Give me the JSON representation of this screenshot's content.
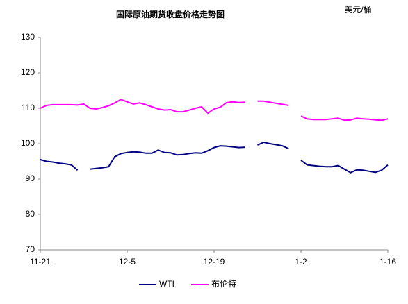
{
  "chart_data": {
    "type": "line",
    "title": "国际原油期货收盘价格走势图",
    "unit": "美元/桶",
    "categories": [
      "11-21",
      null,
      null,
      null,
      null,
      null,
      null,
      null,
      null,
      null,
      null,
      null,
      null,
      null,
      "12-5",
      null,
      null,
      null,
      null,
      null,
      null,
      null,
      null,
      null,
      null,
      null,
      null,
      null,
      "12-19",
      null,
      null,
      null,
      null,
      null,
      null,
      null,
      null,
      null,
      null,
      null,
      null,
      null,
      "1-2",
      null,
      null,
      null,
      null,
      null,
      null,
      null,
      null,
      null,
      null,
      null,
      null,
      null,
      "1-16"
    ],
    "series": [
      {
        "name": "WTI",
        "color": "#000080",
        "values": [
          95.5,
          95.0,
          94.8,
          94.5,
          94.3,
          94.0,
          92.5,
          null,
          92.8,
          93.0,
          93.2,
          93.5,
          96.3,
          97.2,
          97.5,
          97.7,
          97.6,
          97.3,
          97.3,
          98.2,
          97.5,
          97.4,
          96.8,
          96.9,
          97.2,
          97.4,
          97.3,
          98.0,
          98.9,
          99.4,
          99.3,
          99.1,
          98.9,
          99.0,
          null,
          99.6,
          100.4,
          100.0,
          99.7,
          99.4,
          98.6,
          null,
          95.3,
          94.0,
          93.8,
          93.6,
          93.5,
          93.5,
          93.8,
          92.8,
          91.8,
          92.6,
          92.5,
          92.2,
          91.9,
          92.5,
          94.0
        ]
      },
      {
        "name": "布伦特",
        "color": "#ff00ff",
        "values": [
          110.0,
          110.8,
          111.0,
          111.0,
          111.0,
          111.0,
          110.9,
          111.2,
          110.0,
          109.8,
          110.2,
          110.7,
          111.5,
          112.5,
          111.8,
          111.2,
          111.5,
          111.0,
          110.4,
          109.8,
          109.5,
          109.6,
          109.0,
          109.0,
          109.5,
          110.0,
          110.4,
          108.6,
          109.8,
          110.3,
          111.6,
          111.8,
          111.6,
          111.7,
          null,
          112.0,
          112.0,
          111.7,
          111.4,
          111.1,
          110.8,
          null,
          107.8,
          107.0,
          106.8,
          106.8,
          106.8,
          107.0,
          107.2,
          106.6,
          106.7,
          107.2,
          107.0,
          106.9,
          106.7,
          106.6,
          107.0
        ]
      }
    ],
    "ylim": [
      70,
      130
    ],
    "yticks": [
      70,
      80,
      90,
      100,
      110,
      120,
      130
    ],
    "grid": false,
    "legend": "bottom"
  }
}
